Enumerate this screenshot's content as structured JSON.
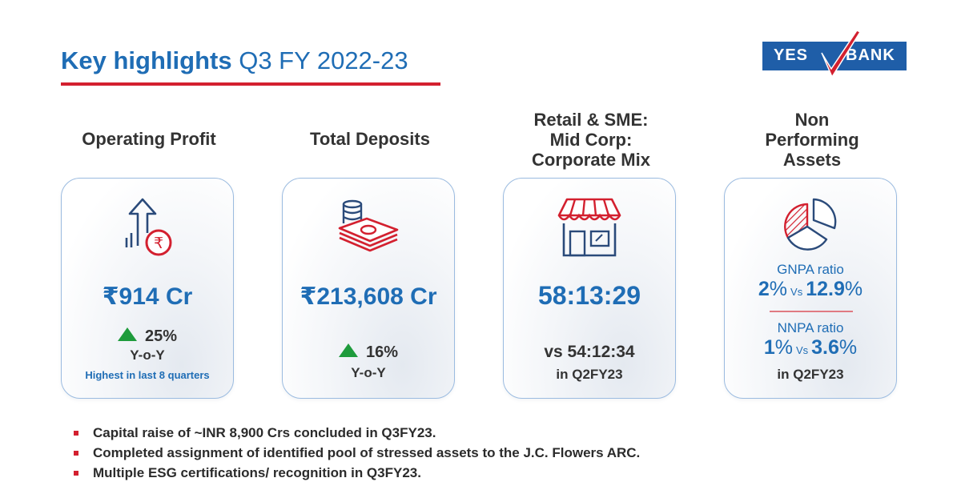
{
  "header": {
    "title_bold": "Key highlights",
    "title_rest": "Q3 FY 2022-23"
  },
  "logo": {
    "left_text": "YES",
    "right_text": "BANK"
  },
  "cards": [
    {
      "title": "Operating Profit",
      "icon": "rupee-growth-arrow-icon",
      "value": "₹914 Cr",
      "change": "25%",
      "change_direction": "up",
      "period": "Y-o-Y",
      "note": "Highest in last 8 quarters"
    },
    {
      "title": "Total Deposits",
      "icon": "cash-stack-icon",
      "value": "₹213,608 Cr",
      "change": "16%",
      "change_direction": "up",
      "period": "Y-o-Y"
    },
    {
      "title_lines": [
        "Retail & SME:",
        "Mid Corp:",
        "Corporate Mix"
      ],
      "icon": "storefront-icon",
      "value": "58:13:29",
      "comparison": "vs 54:12:34",
      "comparison_period": "in Q2FY23"
    },
    {
      "title_lines": [
        "Non",
        "Performing",
        "Assets"
      ],
      "icon": "pie-chart-icon",
      "gnpa": {
        "label": "GNPA ratio",
        "current_num": "2",
        "previous_num": "12.9"
      },
      "nnpa": {
        "label": "NNPA ratio",
        "current_num": "1",
        "previous_num": "3.6"
      },
      "percent_sign": "%",
      "vs": "Vs",
      "comparison_period": "in Q2FY23"
    }
  ],
  "bullets": [
    "Capital raise of ~INR 8,900 Crs concluded in Q3FY23.",
    "Completed assignment of identified pool of stressed assets to the J.C. Flowers ARC.",
    "Multiple ESG certifications/ recognition in Q3FY23."
  ],
  "colors": {
    "brand_blue": "#1f6db5",
    "logo_blue": "#1f5ea8",
    "accent_red": "#d3202f",
    "growth_green": "#1e9b3c"
  }
}
